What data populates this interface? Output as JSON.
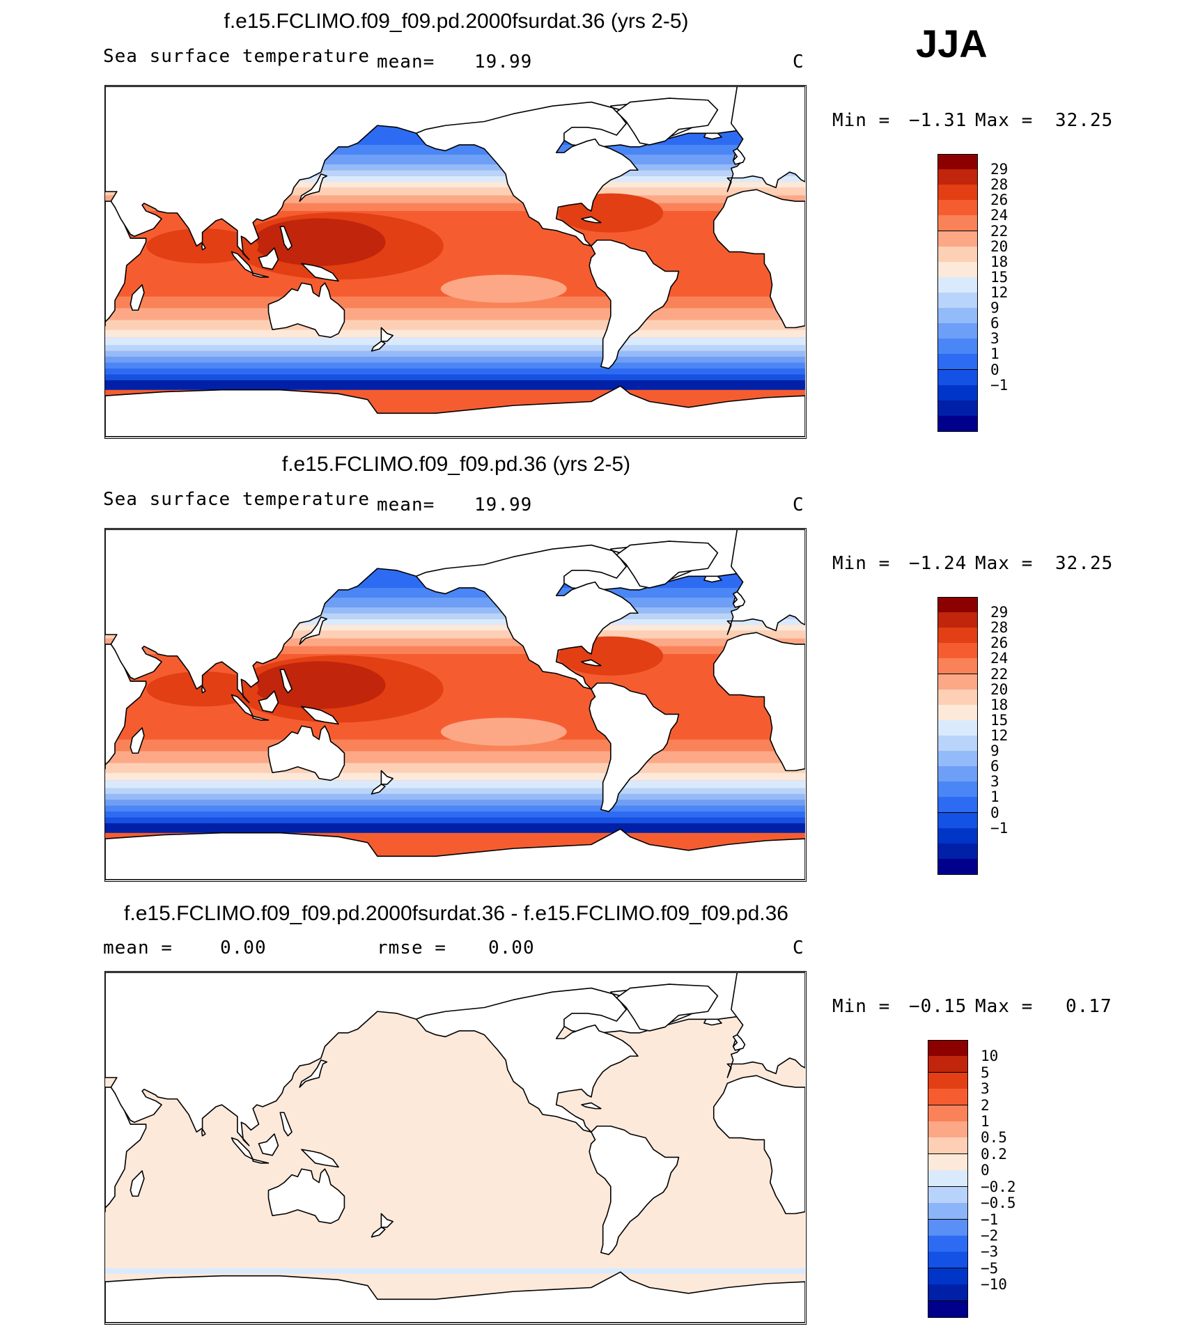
{
  "season": "JJA",
  "colors": {
    "ocean_ramp": [
      "#00008c",
      "#0020a8",
      "#0036c8",
      "#1452e6",
      "#2d6cf2",
      "#4a86f5",
      "#6e9ff7",
      "#94bbf9",
      "#b9d4fb",
      "#daeafd",
      "#fde9da",
      "#fdd0b5",
      "#fca887",
      "#fa8258",
      "#f55d31",
      "#e23f14",
      "#c1250b",
      "#8c0000"
    ],
    "diff_ramp": [
      "#00008c",
      "#0020a8",
      "#0036c8",
      "#1452e6",
      "#2d6cf2",
      "#5a8ff5",
      "#8cb4f8",
      "#b8d3fb",
      "#daeafd",
      "#fde9da",
      "#fdd0b5",
      "#fca887",
      "#fa8258",
      "#f55d31",
      "#e23f14",
      "#c1250b",
      "#8c0000"
    ],
    "land": "#ffffff",
    "coast": "#000000"
  },
  "panels": [
    {
      "title": "f.e15.FCLIMO.f09_f09.pd.2000fsurdat.36 (yrs 2-5)",
      "variable": "Sea surface temperature",
      "stat1_label": "mean=",
      "stat1_value": "19.99",
      "stat2_label": "",
      "stat2_value": "",
      "units": "C",
      "min_label": "Min =",
      "min_value": "−1.31",
      "max_label": "Max =",
      "max_value": "32.25",
      "colorbar_labels": [
        "29",
        "28",
        "26",
        "24",
        "22",
        "20",
        "18",
        "15",
        "12",
        "9",
        "6",
        "3",
        "1",
        "0",
        "−1"
      ]
    },
    {
      "title": "f.e15.FCLIMO.f09_f09.pd.36 (yrs 2-5)",
      "variable": "Sea surface temperature",
      "stat1_label": "mean=",
      "stat1_value": "19.99",
      "stat2_label": "",
      "stat2_value": "",
      "units": "C",
      "min_label": "Min =",
      "min_value": "−1.24",
      "max_label": "Max =",
      "max_value": "32.25",
      "colorbar_labels": [
        "29",
        "28",
        "26",
        "24",
        "22",
        "20",
        "18",
        "15",
        "12",
        "9",
        "6",
        "3",
        "1",
        "0",
        "−1"
      ]
    },
    {
      "title": "f.e15.FCLIMO.f09_f09.pd.2000fsurdat.36 - f.e15.FCLIMO.f09_f09.pd.36",
      "variable": "",
      "stat1_label": "mean =",
      "stat1_value": "0.00",
      "stat2_label": "rmse =",
      "stat2_value": "0.00",
      "units": "C",
      "min_label": "Min =",
      "min_value": "−0.15",
      "max_label": "Max =",
      "max_value": "0.17",
      "colorbar_labels": [
        "10",
        "5",
        "3",
        "2",
        "1",
        "0.5",
        "0.2",
        "0",
        "−0.2",
        "−0.5",
        "−1",
        "−2",
        "−3",
        "−5",
        "−10"
      ]
    }
  ],
  "chart_data": [
    {
      "type": "heatmap",
      "title": "f.e15.FCLIMO.f09_f09.pd.2000fsurdat.36 (yrs 2-5)",
      "variable": "Sea surface temperature",
      "units": "C",
      "mean": 19.99,
      "min": -1.31,
      "max": 32.25,
      "levels": [
        -1,
        0,
        1,
        3,
        6,
        9,
        12,
        15,
        18,
        20,
        22,
        24,
        26,
        28,
        29
      ]
    },
    {
      "type": "heatmap",
      "title": "f.e15.FCLIMO.f09_f09.pd.36 (yrs 2-5)",
      "variable": "Sea surface temperature",
      "units": "C",
      "mean": 19.99,
      "min": -1.24,
      "max": 32.25,
      "levels": [
        -1,
        0,
        1,
        3,
        6,
        9,
        12,
        15,
        18,
        20,
        22,
        24,
        26,
        28,
        29
      ]
    },
    {
      "type": "heatmap",
      "title": "f.e15.FCLIMO.f09_f09.pd.2000fsurdat.36 - f.e15.FCLIMO.f09_f09.pd.36",
      "units": "C",
      "mean": 0.0,
      "rmse": 0.0,
      "min": -0.15,
      "max": 0.17,
      "levels": [
        -10,
        -5,
        -3,
        -2,
        -1,
        -0.5,
        -0.2,
        0,
        0.2,
        0.5,
        1,
        2,
        3,
        5,
        10
      ]
    }
  ]
}
